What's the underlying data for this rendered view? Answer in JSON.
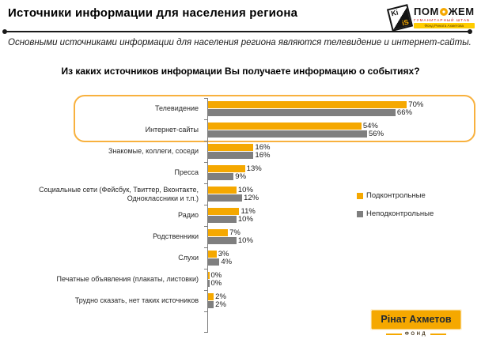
{
  "header": {
    "title": "Источники информации для населения региона",
    "subtitle": "Основными источниками информации для населения региона являются телевидение и интернет-сайты."
  },
  "kiis_logo": {
    "cube_top": "Ki",
    "cube_front": "iS",
    "wordmark_pre": "ПОМ",
    "wordmark_post": "ЖЕМ",
    "tagline": "ГУМАНИТАРНЫЙ ШТАБ",
    "banner": "Фонд Рината Ахметова"
  },
  "chart_data": {
    "type": "bar",
    "orientation": "horizontal",
    "title": "Из каких источников информации Вы получаете информацию о событиях?",
    "categories": [
      "Телевидение",
      "Интернет-сайты",
      "Знакомые, коллеги, соседи",
      "Пресса",
      "Социальные сети (Фейсбук, Твиттер, Вконтакте, Одноклассники и т.п.)",
      "Радио",
      "Родственники",
      "Слухи",
      "Печатные объявления (плакаты, листовки)",
      "Трудно сказать, нет таких источников"
    ],
    "series": [
      {
        "name": "Подконтрольные",
        "color": "#f5a800",
        "values": [
          70,
          54,
          16,
          13,
          10,
          11,
          7,
          3,
          0,
          2
        ]
      },
      {
        "name": "Неподконтрольные",
        "color": "#7f7f7f",
        "values": [
          66,
          56,
          16,
          9,
          12,
          10,
          10,
          4,
          0,
          2
        ]
      }
    ],
    "value_suffix": "%",
    "xlim": [
      0,
      78
    ],
    "legend_position": "right",
    "grid": false,
    "highlighted_categories": [
      "Телевидение",
      "Интернет-сайты"
    ]
  },
  "footer_logo": {
    "name": "Рінат Ахметов",
    "sub": "ФОНД"
  },
  "colors": {
    "controlled": "#f5a800",
    "uncontrolled": "#7f7f7f",
    "highlight_border": "#f8b13e"
  }
}
